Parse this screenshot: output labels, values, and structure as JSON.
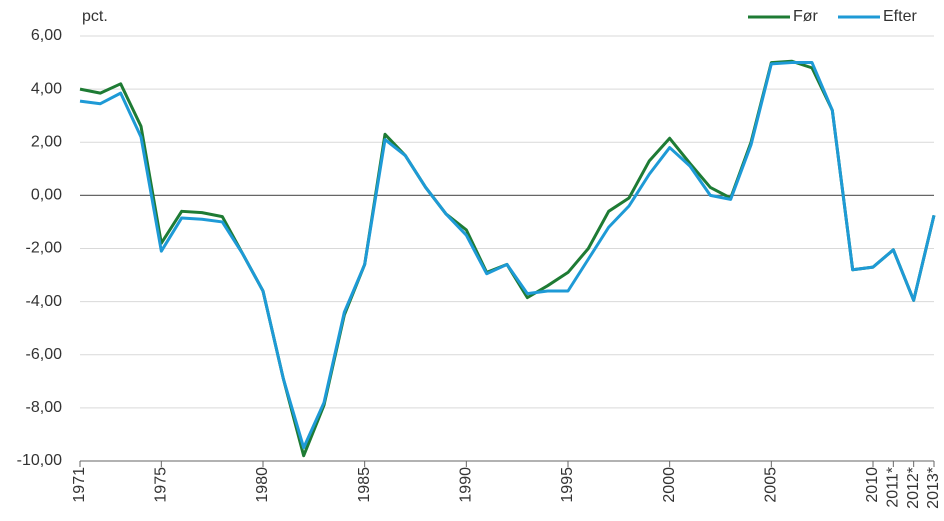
{
  "chart_data": {
    "type": "line",
    "y_label": "pct.",
    "categories": [
      "1971",
      null,
      null,
      null,
      "1975",
      null,
      null,
      null,
      null,
      "1980",
      null,
      null,
      null,
      null,
      "1985",
      null,
      null,
      null,
      null,
      "1990",
      null,
      null,
      null,
      null,
      "1995",
      null,
      null,
      null,
      null,
      "2000",
      null,
      null,
      null,
      null,
      "2005",
      null,
      null,
      null,
      null,
      "2010",
      "2011*",
      "2012*",
      "2013*"
    ],
    "series": [
      {
        "name": "Før",
        "color": "#1e7b34",
        "values": [
          4.0,
          3.85,
          4.2,
          2.6,
          -1.8,
          -0.6,
          -0.65,
          -0.8,
          -2.2,
          -3.6,
          -6.9,
          -9.8,
          -7.9,
          -4.5,
          -2.6,
          2.3,
          1.5,
          0.3,
          -0.7,
          -1.3,
          -2.9,
          -2.6,
          -3.85,
          -3.4,
          -2.9,
          -2.0,
          -0.6,
          -0.1,
          1.3,
          2.15,
          1.2,
          0.3,
          -0.1,
          2.0,
          5.0,
          5.05,
          4.8,
          3.2,
          -2.8,
          -2.7,
          -2.05,
          -3.95,
          -0.75
        ]
      },
      {
        "name": "Efter",
        "color": "#1e9ad6",
        "values": [
          3.55,
          3.45,
          3.85,
          2.2,
          -2.1,
          -0.85,
          -0.9,
          -1.0,
          -2.2,
          -3.6,
          -6.9,
          -9.5,
          -7.8,
          -4.4,
          -2.6,
          2.1,
          1.5,
          0.3,
          -0.7,
          -1.5,
          -2.95,
          -2.6,
          -3.7,
          -3.6,
          -3.6,
          -2.4,
          -1.2,
          -0.4,
          0.8,
          1.8,
          1.1,
          0.0,
          -0.15,
          1.9,
          4.95,
          5.0,
          5.0,
          3.2,
          -2.8,
          -2.7,
          -2.05,
          -3.95,
          -0.75
        ]
      }
    ],
    "ylim": [
      -10,
      6
    ],
    "yticks": [
      {
        "value": -10,
        "label": "-10,00"
      },
      {
        "value": -8,
        "label": "-8,00"
      },
      {
        "value": -6,
        "label": "-6,00"
      },
      {
        "value": -4,
        "label": "-4,00"
      },
      {
        "value": -2,
        "label": "-2,00"
      },
      {
        "value": 0,
        "label": "0,00"
      },
      {
        "value": 2,
        "label": "2,00"
      },
      {
        "value": 4,
        "label": "4,00"
      },
      {
        "value": 6,
        "label": "6,00"
      }
    ],
    "grid": true,
    "legend": "top-right"
  }
}
